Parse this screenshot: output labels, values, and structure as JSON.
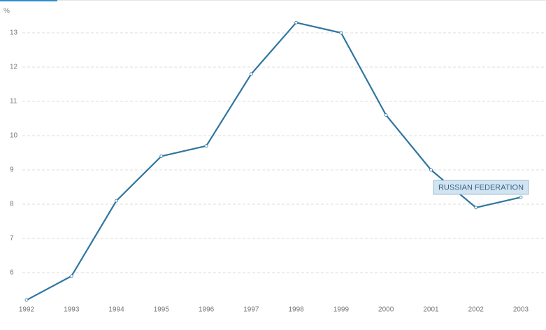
{
  "chart_data": {
    "type": "line",
    "y_label": "%",
    "x": [
      1992,
      1993,
      1994,
      1995,
      1996,
      1997,
      1998,
      1999,
      2000,
      2001,
      2002,
      2003
    ],
    "series": [
      {
        "name": "RUSSIAN FEDERATION",
        "color": "#2f76a0",
        "values": [
          5.2,
          5.9,
          8.1,
          9.4,
          9.7,
          11.8,
          13.3,
          13.0,
          10.6,
          9.0,
          7.9,
          8.2
        ]
      }
    ],
    "xlim": [
      1992,
      2003
    ],
    "xticks": [
      1992,
      1993,
      1994,
      1995,
      1996,
      1997,
      1998,
      1999,
      2000,
      2001,
      2002,
      2003
    ],
    "ylim": [
      5.1,
      13.7
    ],
    "yticks": [
      6,
      7,
      8,
      9,
      10,
      11,
      12,
      13
    ],
    "grid": true
  }
}
